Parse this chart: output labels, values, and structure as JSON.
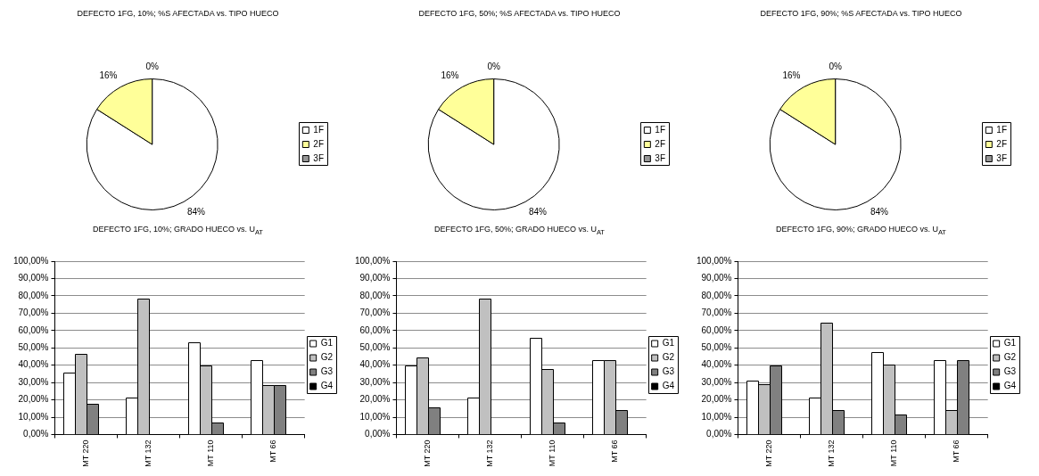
{
  "chart_data": [
    {
      "type": "pie",
      "title": "DEFECTO 1FG, 10%; %S AFECTADA vs. TIPO HUECO",
      "categories": [
        "1F",
        "2F",
        "3F"
      ],
      "values": [
        84,
        16,
        0
      ],
      "colors": [
        "#ffffff",
        "#ffff99",
        "#969696"
      ],
      "value_labels": [
        "84%",
        "16%",
        "0%"
      ],
      "legend": "right"
    },
    {
      "type": "pie",
      "title": "DEFECTO 1FG, 50%; %S AFECTADA vs. TIPO HUECO",
      "categories": [
        "1F",
        "2F",
        "3F"
      ],
      "values": [
        84,
        16,
        0
      ],
      "colors": [
        "#ffffff",
        "#ffff99",
        "#969696"
      ],
      "value_labels": [
        "84%",
        "16%",
        "0%"
      ],
      "legend": "right"
    },
    {
      "type": "pie",
      "title": "DEFECTO 1FG, 90%; %S AFECTADA vs. TIPO HUECO",
      "categories": [
        "1F",
        "2F",
        "3F"
      ],
      "values": [
        84,
        16,
        0
      ],
      "colors": [
        "#ffffff",
        "#ffff99",
        "#969696"
      ],
      "value_labels": [
        "84%",
        "16%",
        "0%"
      ],
      "legend": "right"
    },
    {
      "type": "bar",
      "title": "DEFECTO 1FG, 10%; GRADO HUECO vs. U$_{AT}$",
      "categories": [
        "MT 220",
        "MT 132",
        "MT 110",
        "MT 66"
      ],
      "series": [
        {
          "name": "G1",
          "color": "#ffffff",
          "values": [
            35.7,
            21.4,
            53.3,
            42.9
          ]
        },
        {
          "name": "G2",
          "color": "#c0c0c0",
          "values": [
            46.4,
            78.6,
            40,
            28.6
          ]
        },
        {
          "name": "G3",
          "color": "#808080",
          "values": [
            17.9,
            0,
            6.7,
            28.6
          ]
        },
        {
          "name": "G4",
          "color": "#000000",
          "values": [
            0,
            0,
            0,
            0
          ]
        }
      ],
      "ylim": [
        0,
        100
      ],
      "yticks": [
        {
          "value": 0,
          "label": "0,00%"
        },
        {
          "value": 10,
          "label": "10,00%"
        },
        {
          "value": 20,
          "label": "20,00%"
        },
        {
          "value": 30,
          "label": "30,00%"
        },
        {
          "value": 40,
          "label": "40,00%"
        },
        {
          "value": 50,
          "label": "50,00%"
        },
        {
          "value": 60,
          "label": "60,00%"
        },
        {
          "value": 70,
          "label": "70,00%"
        },
        {
          "value": 80,
          "label": "80,00%"
        },
        {
          "value": 90,
          "label": "90,00%"
        },
        {
          "value": 100,
          "label": "100,00%"
        }
      ],
      "grid": "y",
      "legend": "right"
    },
    {
      "type": "bar",
      "title": "DEFECTO 1FG, 50%; GRADO HUECO vs. U$_{AT}$",
      "categories": [
        "MT 220",
        "MT 132",
        "MT 110",
        "MT 66"
      ],
      "series": [
        {
          "name": "G1",
          "color": "#ffffff",
          "values": [
            40,
            21.4,
            55.6,
            42.9
          ]
        },
        {
          "name": "G2",
          "color": "#c0c0c0",
          "values": [
            44.4,
            78.6,
            37.8,
            42.9
          ]
        },
        {
          "name": "G3",
          "color": "#808080",
          "values": [
            15.6,
            0,
            6.7,
            14.3
          ]
        },
        {
          "name": "G4",
          "color": "#000000",
          "values": [
            0,
            0,
            0,
            0
          ]
        }
      ],
      "ylim": [
        0,
        100
      ],
      "yticks": [
        {
          "value": 0,
          "label": "0,00%"
        },
        {
          "value": 10,
          "label": "10,00%"
        },
        {
          "value": 20,
          "label": "20,00%"
        },
        {
          "value": 30,
          "label": "30,00%"
        },
        {
          "value": 40,
          "label": "40,00%"
        },
        {
          "value": 50,
          "label": "50,00%"
        },
        {
          "value": 60,
          "label": "60,00%"
        },
        {
          "value": 70,
          "label": "70,00%"
        },
        {
          "value": 80,
          "label": "80,00%"
        },
        {
          "value": 90,
          "label": "90,00%"
        },
        {
          "value": 100,
          "label": "100,00%"
        }
      ],
      "grid": "y",
      "legend": "right"
    },
    {
      "type": "bar",
      "title": "DEFECTO 1FG, 90%; GRADO HUECO vs. U$_{AT}$",
      "categories": [
        "MT 220",
        "MT 132",
        "MT 110",
        "MT 66"
      ],
      "series": [
        {
          "name": "G1",
          "color": "#ffffff",
          "values": [
            31.1,
            21.4,
            47.8,
            42.9
          ]
        },
        {
          "name": "G2",
          "color": "#c0c0c0",
          "values": [
            28.9,
            64.3,
            40.6,
            14.3
          ]
        },
        {
          "name": "G3",
          "color": "#808080",
          "values": [
            40,
            14.3,
            11.7,
            42.9
          ]
        },
        {
          "name": "G4",
          "color": "#000000",
          "values": [
            0,
            0,
            0,
            0
          ]
        }
      ],
      "ylim": [
        0,
        100
      ],
      "yticks": [
        {
          "value": 0,
          "label": "0,00%"
        },
        {
          "value": 10,
          "label": "10,00%"
        },
        {
          "value": 20,
          "label": "20,00%"
        },
        {
          "value": 30,
          "label": "30,00%"
        },
        {
          "value": 40,
          "label": "40,00%"
        },
        {
          "value": 50,
          "label": "50,00%"
        },
        {
          "value": 60,
          "label": "60,00%"
        },
        {
          "value": 70,
          "label": "70,00%"
        },
        {
          "value": 80,
          "label": "80,00%"
        },
        {
          "value": 90,
          "label": "90,00%"
        },
        {
          "value": 100,
          "label": "100,00%"
        }
      ],
      "grid": "y",
      "legend": "right"
    }
  ]
}
